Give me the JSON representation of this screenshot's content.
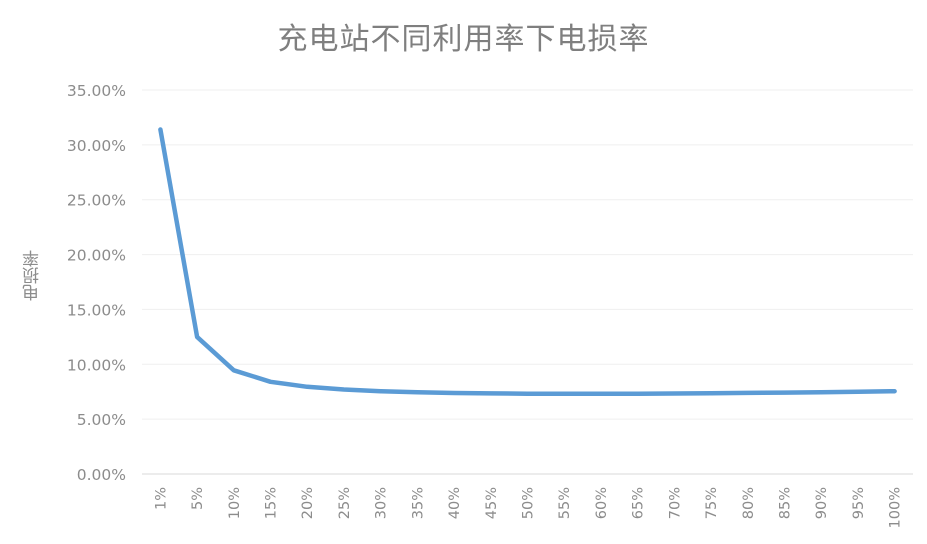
{
  "chart_data": {
    "type": "line",
    "title": "充电站不同利用率下电损率",
    "xlabel": "",
    "ylabel": "电损率",
    "categories": [
      "1%",
      "5%",
      "10%",
      "15%",
      "20%",
      "25%",
      "30%",
      "35%",
      "40%",
      "45%",
      "50%",
      "55%",
      "60%",
      "65%",
      "70%",
      "75%",
      "80%",
      "85%",
      "90%",
      "95%",
      "100%"
    ],
    "series": [
      {
        "name": "电损率",
        "color": "#5b9bd5",
        "values": [
          31.4,
          12.5,
          9.45,
          8.4,
          7.95,
          7.7,
          7.55,
          7.45,
          7.38,
          7.35,
          7.32,
          7.31,
          7.31,
          7.32,
          7.34,
          7.36,
          7.39,
          7.42,
          7.46,
          7.5,
          7.55
        ]
      }
    ],
    "ylim": [
      0,
      35
    ],
    "yticks": [
      "0.00%",
      "5.00%",
      "10.00%",
      "15.00%",
      "20.00%",
      "25.00%",
      "30.00%",
      "35.00%"
    ],
    "grid": true,
    "legend": "none"
  }
}
